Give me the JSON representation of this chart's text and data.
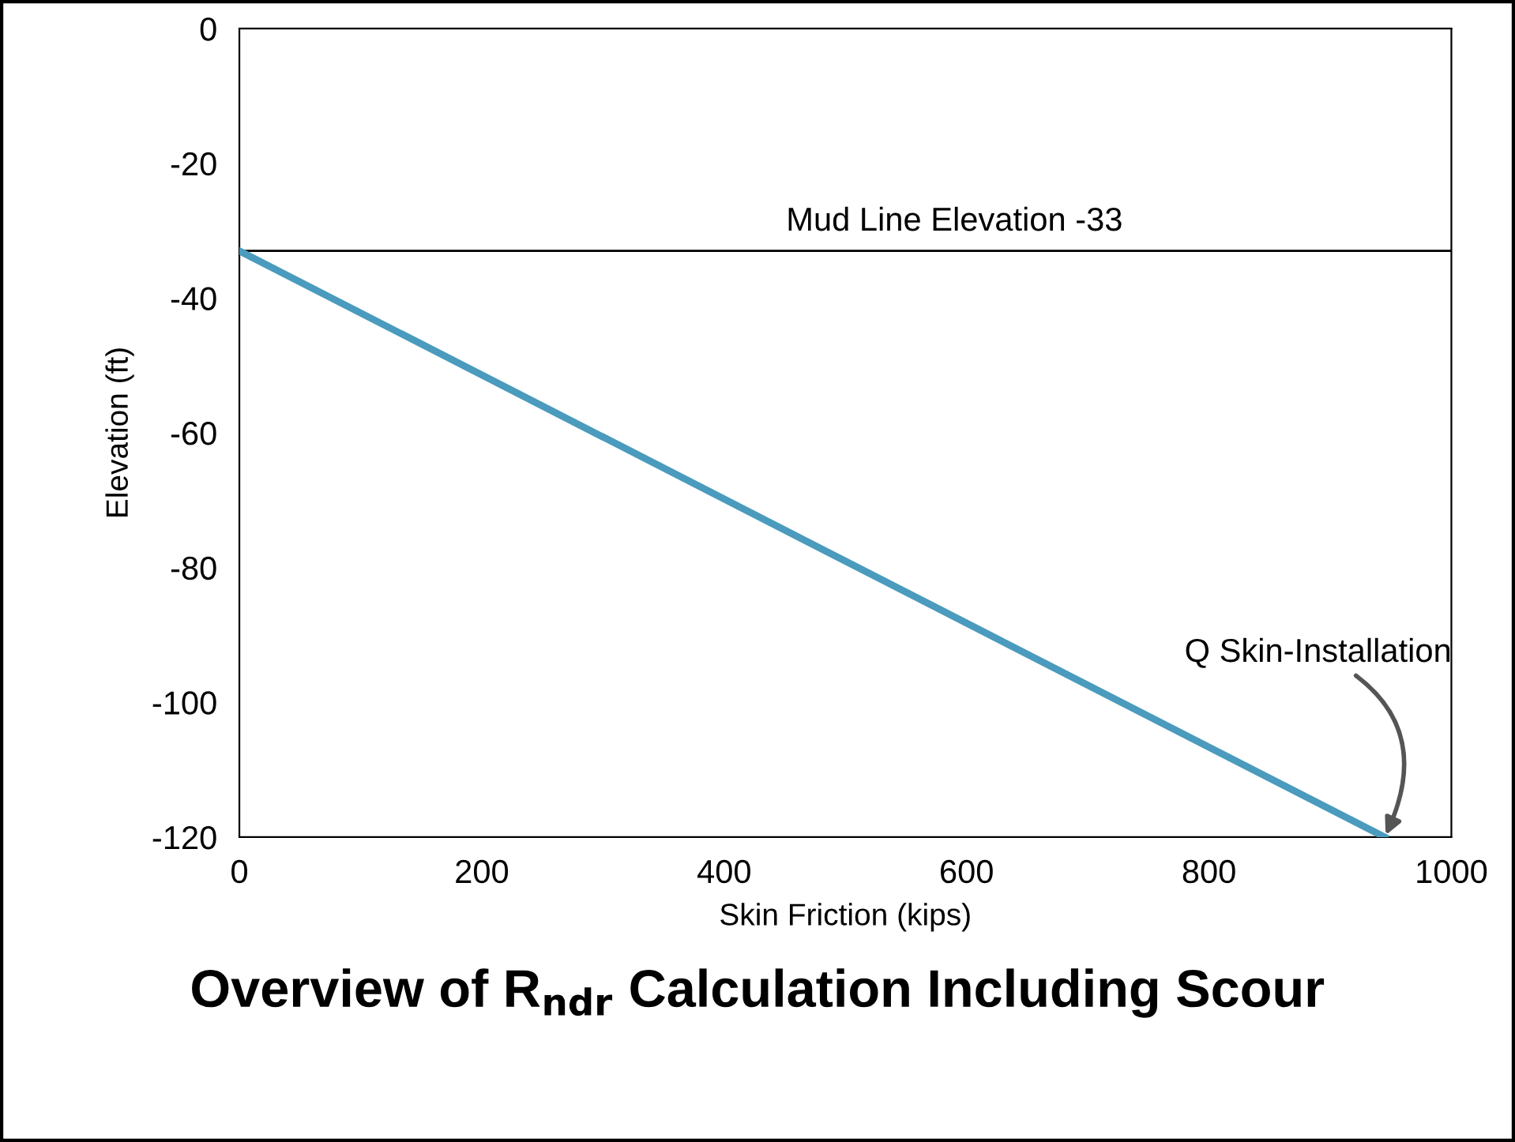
{
  "chart_data": {
    "type": "line",
    "title": "Overview of R$_{ndr}$ Calculation Including Scour",
    "xlabel": "Skin Friction (kips)",
    "ylabel": "Elevation (ft)",
    "x": [
      0,
      945
    ],
    "series": [
      {
        "color": "#4a9bbd",
        "values": [
          -33,
          -120
        ]
      }
    ],
    "xlim": [
      0,
      1000
    ],
    "xticks": [
      0,
      200,
      400,
      600,
      800,
      1000
    ],
    "ylim": [
      -120,
      0
    ],
    "yticks": [
      -120,
      -100,
      -80,
      -60,
      -40,
      -20,
      0
    ],
    "ref_lines": [
      {
        "axis": "y",
        "value": -33,
        "label": "Mud Line Elevation -33",
        "color": "#000000"
      }
    ],
    "annotations": [
      {
        "text": "Q Skin-Installation",
        "x": 945,
        "y": -120
      }
    ],
    "grid": false,
    "legend": false,
    "marker": "none",
    "line_style": "solid"
  }
}
